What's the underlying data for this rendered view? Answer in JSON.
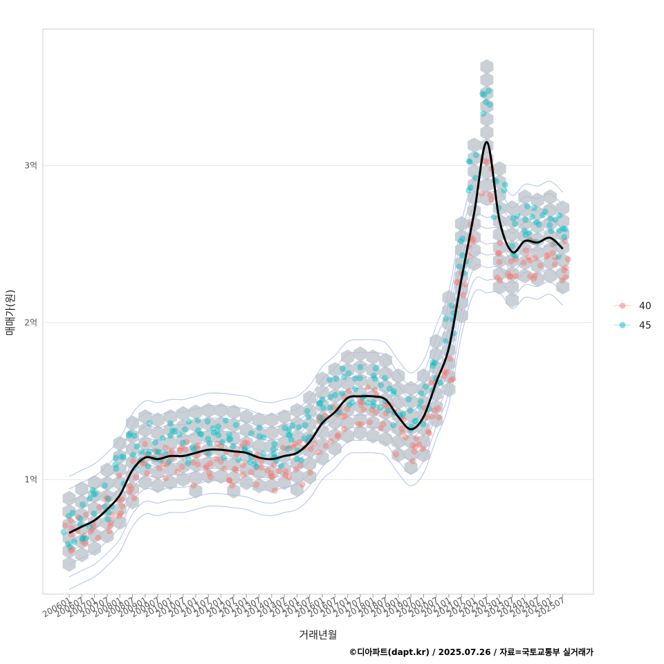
{
  "chart_data": {
    "type": "scatter",
    "title": "",
    "xlabel": "거래년월",
    "ylabel": "매매가(원)",
    "caption": "©디아파트(dapt.kr) / 2025.07.26 / 자료=국토교통부 실거래가",
    "x_tick_labels": [
      "200601",
      "200607",
      "200701",
      "200707",
      "200801",
      "200807",
      "200901",
      "200907",
      "201001",
      "201007",
      "201101",
      "201107",
      "201201",
      "201207",
      "201301",
      "201307",
      "201401",
      "201407",
      "201501",
      "201507",
      "201601",
      "201607",
      "201701",
      "201707",
      "201801",
      "201807",
      "201901",
      "201907",
      "202001",
      "202007",
      "202101",
      "202107",
      "202201",
      "202207",
      "202301",
      "202307",
      "202401",
      "202407",
      "202501",
      "202507"
    ],
    "y_ticks": [
      {
        "value": 1,
        "label": "1억"
      },
      {
        "value": 2,
        "label": "2억"
      },
      {
        "value": 3,
        "label": "3억"
      }
    ],
    "ylim": [
      0.27,
      3.87
    ],
    "y_unit": "억 원",
    "legend": {
      "position": "right",
      "entries": [
        {
          "name": "40",
          "color": "#F8766D"
        },
        {
          "name": "45",
          "color": "#00BFC4"
        }
      ]
    },
    "trend_line": {
      "description_color": "#000000",
      "x": [
        0,
        1,
        2,
        3,
        4,
        5,
        6,
        7,
        8,
        9,
        10,
        11,
        12,
        13,
        14,
        15,
        16,
        17,
        18,
        19,
        20,
        21,
        22,
        23,
        24,
        25,
        26,
        27,
        28,
        29,
        30,
        31,
        32,
        33,
        34,
        35,
        36,
        37,
        38,
        39
      ],
      "y": [
        0.66,
        0.7,
        0.74,
        0.81,
        0.9,
        1.06,
        1.14,
        1.13,
        1.15,
        1.15,
        1.17,
        1.19,
        1.19,
        1.18,
        1.17,
        1.14,
        1.13,
        1.15,
        1.17,
        1.24,
        1.36,
        1.43,
        1.52,
        1.53,
        1.53,
        1.51,
        1.4,
        1.32,
        1.4,
        1.62,
        1.84,
        2.28,
        2.7,
        3.15,
        2.65,
        2.45,
        2.52,
        2.51,
        2.54,
        2.47
      ]
    },
    "hexbin_color": "#B8C0C8",
    "density_contour_color": "#9FB3EE",
    "series": [
      {
        "name": "40",
        "color": "#F8766D",
        "level": [
          0.6,
          0.68,
          0.72,
          0.78,
          0.9,
          1.02,
          1.1,
          1.1,
          1.08,
          1.1,
          1.1,
          1.12,
          1.12,
          1.1,
          1.1,
          1.07,
          1.06,
          1.08,
          1.1,
          1.16,
          1.28,
          1.36,
          1.45,
          1.46,
          1.45,
          1.42,
          1.3,
          1.22,
          1.32,
          1.52,
          1.75,
          2.2,
          2.55,
          2.9,
          2.4,
          2.3,
          2.4,
          2.42,
          2.45,
          2.4
        ]
      },
      {
        "name": "45",
        "color": "#00BFC4",
        "level": [
          0.7,
          0.76,
          0.8,
          0.88,
          1.05,
          1.18,
          1.22,
          1.2,
          1.22,
          1.24,
          1.25,
          1.26,
          1.26,
          1.25,
          1.22,
          1.2,
          1.2,
          1.22,
          1.26,
          1.34,
          1.46,
          1.52,
          1.6,
          1.62,
          1.6,
          1.58,
          1.48,
          1.4,
          1.48,
          1.7,
          1.98,
          2.45,
          2.95,
          3.45,
          2.8,
          2.55,
          2.62,
          2.6,
          2.62,
          2.55
        ]
      }
    ]
  }
}
